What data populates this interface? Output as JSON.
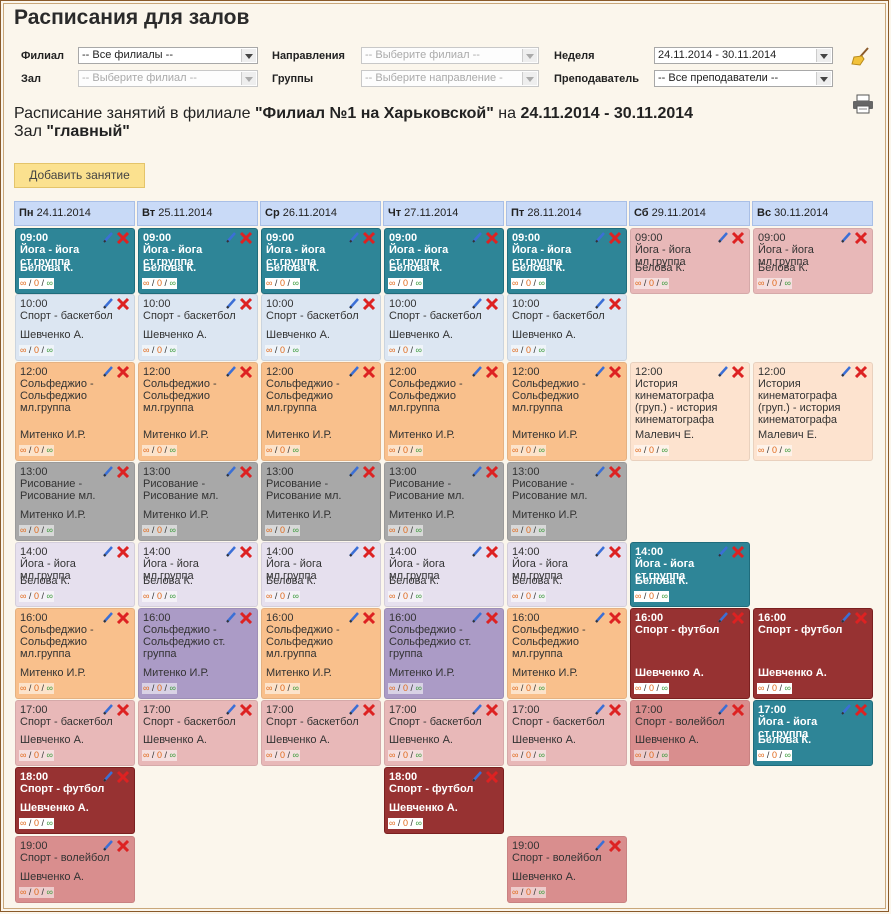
{
  "title": "Расписания для залов",
  "filters": {
    "branch_label": "Филиал",
    "branch_value": "-- Все филиалы --",
    "hall_label": "Зал",
    "hall_value": "-- Выберите филиал --",
    "direction_label": "Направления",
    "direction_value": "-- Выберите филиал --",
    "groups_label": "Группы",
    "groups_value": "-- Выберите направление -",
    "week_label": "Неделя",
    "week_value": "24.11.2014 - 30.11.2014",
    "teacher_label": "Преподаватель",
    "teacher_value": "-- Все преподаватели --"
  },
  "info": {
    "prefix": "Расписание занятий в филиале",
    "branch": "\"Филиал №1 на Харьковской\"",
    "mid": "на",
    "week": "24.11.2014 - 30.11.2014",
    "hall_prefix": "Зал",
    "hall": "\"главный\""
  },
  "add_button": "Добавить занятие",
  "days": [
    {
      "abbr": "Пн",
      "date": "24.11.2014"
    },
    {
      "abbr": "Вт",
      "date": "25.11.2014"
    },
    {
      "abbr": "Ср",
      "date": "26.11.2014"
    },
    {
      "abbr": "Чт",
      "date": "27.11.2014"
    },
    {
      "abbr": "Пт",
      "date": "28.11.2014"
    },
    {
      "abbr": "Сб",
      "date": "29.11.2014"
    },
    {
      "abbr": "Вс",
      "date": "30.11.2014"
    }
  ],
  "count_text": {
    "a": "∞",
    "sep": "/",
    "b": "0",
    "c": "∞"
  },
  "colors": {
    "teal": "#2e8597",
    "maroon": "#973232",
    "peach": "#f9c08c",
    "gray": "#a8a8a8",
    "lightblue": "#dce6f2",
    "lavender": "#e6e0ee",
    "purple": "#ab9bc6",
    "pink": "#e8b8b8",
    "rose": "#d98e8e",
    "pinklight": "#efc9c9",
    "peachlight": "#fde3cf",
    "dayheader": "#c9daf7",
    "add_button": "#fbe18f"
  },
  "rows": [
    {
      "label": "09:00",
      "cells": [
        {
          "time": "09:00",
          "title": "Йога - йога ст.группа",
          "teacher": "Белова К.",
          "color": "teal",
          "bold": true
        },
        {
          "time": "09:00",
          "title": "Йога - йога ст.группа",
          "teacher": "Белова К.",
          "color": "teal",
          "bold": true
        },
        {
          "time": "09:00",
          "title": "Йога - йога ст.группа",
          "teacher": "Белова К.",
          "color": "teal",
          "bold": true
        },
        {
          "time": "09:00",
          "title": "Йога - йога ст.группа",
          "teacher": "Белова К.",
          "color": "teal",
          "bold": true
        },
        {
          "time": "09:00",
          "title": "Йога - йога ст.группа",
          "teacher": "Белова К.",
          "color": "teal",
          "bold": true
        },
        {
          "time": "09:00",
          "title": "Йога - йога мл.группа",
          "teacher": "Белова К.",
          "color": "pink",
          "bold": false
        },
        {
          "time": "09:00",
          "title": "Йога - йога мл.группа",
          "teacher": "Белова К.",
          "color": "pink",
          "bold": false
        }
      ]
    },
    {
      "label": "10:00",
      "cells": [
        {
          "time": "10:00",
          "title": "Спорт - баскетбол",
          "teacher": "Шевченко А.",
          "color": "lightblue",
          "bold": false
        },
        {
          "time": "10:00",
          "title": "Спорт - баскетбол",
          "teacher": "Шевченко А.",
          "color": "lightblue",
          "bold": false
        },
        {
          "time": "10:00",
          "title": "Спорт - баскетбол",
          "teacher": "Шевченко А.",
          "color": "lightblue",
          "bold": false
        },
        {
          "time": "10:00",
          "title": "Спорт - баскетбол",
          "teacher": "Шевченко А.",
          "color": "lightblue",
          "bold": false
        },
        {
          "time": "10:00",
          "title": "Спорт - баскетбол",
          "teacher": "Шевченко А.",
          "color": "lightblue",
          "bold": false
        },
        null,
        null
      ]
    },
    {
      "label": "12:00",
      "cells": [
        {
          "time": "12:00",
          "title": "Сольфеджио - Сольфеджио мл.группа",
          "teacher": "Митенко И.Р.",
          "color": "peach",
          "bold": false
        },
        {
          "time": "12:00",
          "title": "Сольфеджио - Сольфеджио мл.группа",
          "teacher": "Митенко И.Р.",
          "color": "peach",
          "bold": false
        },
        {
          "time": "12:00",
          "title": "Сольфеджио - Сольфеджио мл.группа",
          "teacher": "Митенко И.Р.",
          "color": "peach",
          "bold": false
        },
        {
          "time": "12:00",
          "title": "Сольфеджио - Сольфеджио мл.группа",
          "teacher": "Митенко И.Р.",
          "color": "peach",
          "bold": false
        },
        {
          "time": "12:00",
          "title": "Сольфеджио - Сольфеджио мл.группа",
          "teacher": "Митенко И.Р.",
          "color": "peach",
          "bold": false
        },
        {
          "time": "12:00",
          "title": "История кинематографа (груп.) - история кинематографа",
          "teacher": "Малевич Е.",
          "color": "peachlight",
          "bold": false
        },
        {
          "time": "12:00",
          "title": "История кинематографа (груп.) - история кинематографа",
          "teacher": "Малевич Е.",
          "color": "peachlight",
          "bold": false
        }
      ]
    },
    {
      "label": "13:00",
      "cells": [
        {
          "time": "13:00",
          "title": "Рисование - Рисование мл.",
          "teacher": "Митенко И.Р.",
          "color": "gray",
          "bold": false
        },
        {
          "time": "13:00",
          "title": "Рисование - Рисование мл.",
          "teacher": "Митенко И.Р.",
          "color": "gray",
          "bold": false
        },
        {
          "time": "13:00",
          "title": "Рисование - Рисование мл.",
          "teacher": "Митенко И.Р.",
          "color": "gray",
          "bold": false
        },
        {
          "time": "13:00",
          "title": "Рисование - Рисование мл.",
          "teacher": "Митенко И.Р.",
          "color": "gray",
          "bold": false
        },
        {
          "time": "13:00",
          "title": "Рисование - Рисование мл.",
          "teacher": "Митенко И.Р.",
          "color": "gray",
          "bold": false
        },
        null,
        null
      ]
    },
    {
      "label": "14:00",
      "cells": [
        {
          "time": "14:00",
          "title": "Йога - йога мл.группа",
          "teacher": "Белова К.",
          "color": "lavender",
          "bold": false
        },
        {
          "time": "14:00",
          "title": "Йога - йога мл.группа",
          "teacher": "Белова К.",
          "color": "lavender",
          "bold": false
        },
        {
          "time": "14:00",
          "title": "Йога - йога мл.группа",
          "teacher": "Белова К.",
          "color": "lavender",
          "bold": false
        },
        {
          "time": "14:00",
          "title": "Йога - йога мл.группа",
          "teacher": "Белова К.",
          "color": "lavender",
          "bold": false
        },
        {
          "time": "14:00",
          "title": "Йога - йога мл.группа",
          "teacher": "Белова К.",
          "color": "lavender",
          "bold": false
        },
        {
          "time": "14:00",
          "title": "Йога - йога ст.группа",
          "teacher": "Белова К.",
          "color": "teal",
          "bold": true
        },
        null
      ]
    },
    {
      "label": "16:00",
      "cells": [
        {
          "time": "16:00",
          "title": "Сольфеджио - Сольфеджио мл.группа",
          "teacher": "Митенко И.Р.",
          "color": "peach",
          "bold": false
        },
        {
          "time": "16:00",
          "title": "Сольфеджио - Сольфеджио ст. группа",
          "teacher": "Митенко И.Р.",
          "color": "purple",
          "bold": false
        },
        {
          "time": "16:00",
          "title": "Сольфеджио - Сольфеджио мл.группа",
          "teacher": "Митенко И.Р.",
          "color": "peach",
          "bold": false
        },
        {
          "time": "16:00",
          "title": "Сольфеджио - Сольфеджио ст. группа",
          "teacher": "Митенко И.Р.",
          "color": "purple",
          "bold": false
        },
        {
          "time": "16:00",
          "title": "Сольфеджио - Сольфеджио мл.группа",
          "teacher": "Митенко И.Р.",
          "color": "peach",
          "bold": false
        },
        {
          "time": "16:00",
          "title": "Спорт - футбол",
          "teacher": "Шевченко А.",
          "color": "maroon",
          "bold": true
        },
        {
          "time": "16:00",
          "title": "Спорт - футбол",
          "teacher": "Шевченко А.",
          "color": "maroon",
          "bold": true
        }
      ]
    },
    {
      "label": "17:00",
      "cells": [
        {
          "time": "17:00",
          "title": "Спорт - баскетбол",
          "teacher": "Шевченко А.",
          "color": "pink",
          "bold": false
        },
        {
          "time": "17:00",
          "title": "Спорт - баскетбол",
          "teacher": "Шевченко А.",
          "color": "pink",
          "bold": false
        },
        {
          "time": "17:00",
          "title": "Спорт - баскетбол",
          "teacher": "Шевченко А.",
          "color": "pink",
          "bold": false
        },
        {
          "time": "17:00",
          "title": "Спорт - баскетбол",
          "teacher": "Шевченко А.",
          "color": "pink",
          "bold": false
        },
        {
          "time": "17:00",
          "title": "Спорт - баскетбол",
          "teacher": "Шевченко А.",
          "color": "pink",
          "bold": false
        },
        {
          "time": "17:00",
          "title": "Спорт - волейбол",
          "teacher": "Шевченко А.",
          "color": "rose",
          "bold": false
        },
        {
          "time": "17:00",
          "title": "Йога - йога ст.группа",
          "teacher": "Белова К.",
          "color": "teal",
          "bold": true
        }
      ]
    },
    {
      "label": "18:00",
      "cells": [
        {
          "time": "18:00",
          "title": "Спорт - футбол",
          "teacher": "Шевченко А.",
          "color": "maroon",
          "bold": true
        },
        null,
        null,
        {
          "time": "18:00",
          "title": "Спорт - футбол",
          "teacher": "Шевченко А.",
          "color": "maroon",
          "bold": true
        },
        null,
        null,
        null
      ]
    },
    {
      "label": "19:00",
      "cells": [
        {
          "time": "19:00",
          "title": "Спорт - волейбол",
          "teacher": "Шевченко А.",
          "color": "rose",
          "bold": false
        },
        null,
        null,
        null,
        {
          "time": "19:00",
          "title": "Спорт - волейбол",
          "teacher": "Шевченко А.",
          "color": "rose",
          "bold": false
        },
        null,
        null
      ]
    }
  ]
}
